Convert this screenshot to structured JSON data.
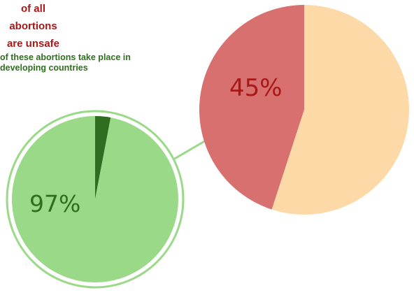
{
  "chart_data": [
    {
      "type": "pie",
      "name": "unsafe-share",
      "slices": [
        {
          "label": "unsafe",
          "value": 45,
          "color": "#d97070"
        },
        {
          "label": "",
          "value": 55,
          "color": "#fdd9a8"
        }
      ],
      "value_label": "45%",
      "description": "of all abortions are unsafe",
      "label_color": "#a81818"
    },
    {
      "type": "pie",
      "name": "developing-share",
      "slices": [
        {
          "label": "developing countries",
          "value": 97,
          "color": "#9ad987"
        },
        {
          "label": "",
          "value": 3,
          "color": "#2e6e1e"
        }
      ],
      "value_label": "97%",
      "description": "of these abortions take place in developing countries",
      "label_color": "#2e6e1e",
      "ring_color": "#9ad987"
    }
  ],
  "connector_color": "#9ad987"
}
